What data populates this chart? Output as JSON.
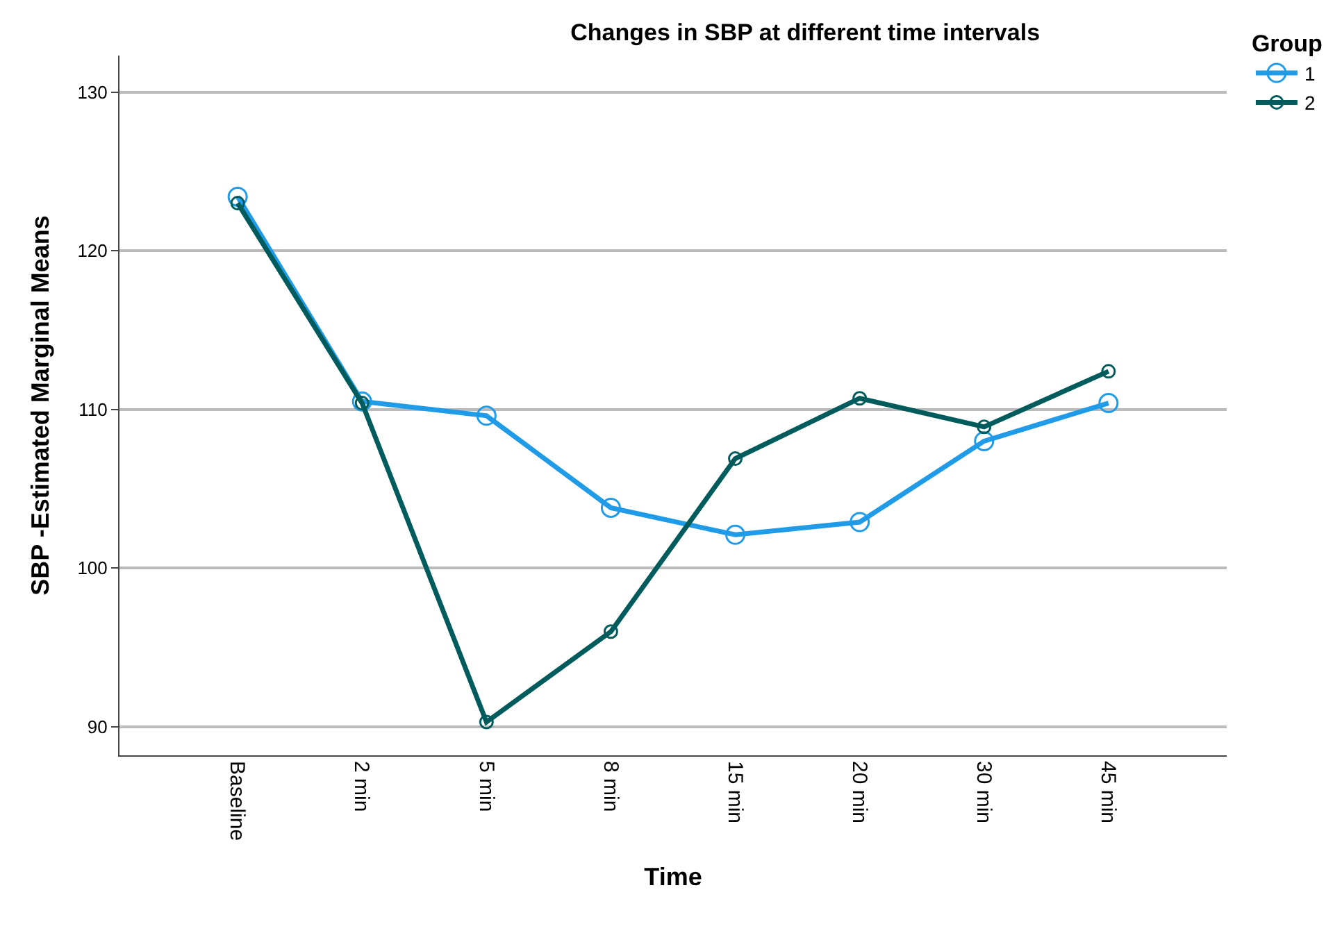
{
  "chart_data": {
    "type": "line",
    "title": "Changes in SBP at different time intervals",
    "xlabel": "Time",
    "ylabel": "SBP -Estimated Marginal Means",
    "legend_title": "Group",
    "categories": [
      "Baseline",
      "2 min",
      "5 min",
      "8 min",
      "15 min",
      "20 min",
      "30 min",
      "45 min"
    ],
    "series": [
      {
        "name": "1",
        "color": "#1f9be8",
        "values": [
          123.4,
          110.5,
          109.6,
          103.8,
          102.1,
          102.9,
          108.0,
          110.4
        ]
      },
      {
        "name": "2",
        "color": "#005c5c",
        "values": [
          123.0,
          110.4,
          90.3,
          96.0,
          106.9,
          110.7,
          108.9,
          112.4
        ]
      }
    ],
    "ylim": [
      88.2,
      132.3
    ],
    "yticks": [
      90,
      100,
      110,
      120,
      130
    ],
    "grid": "y",
    "legend": "top right",
    "marker": "circle",
    "line_style": "solid"
  }
}
